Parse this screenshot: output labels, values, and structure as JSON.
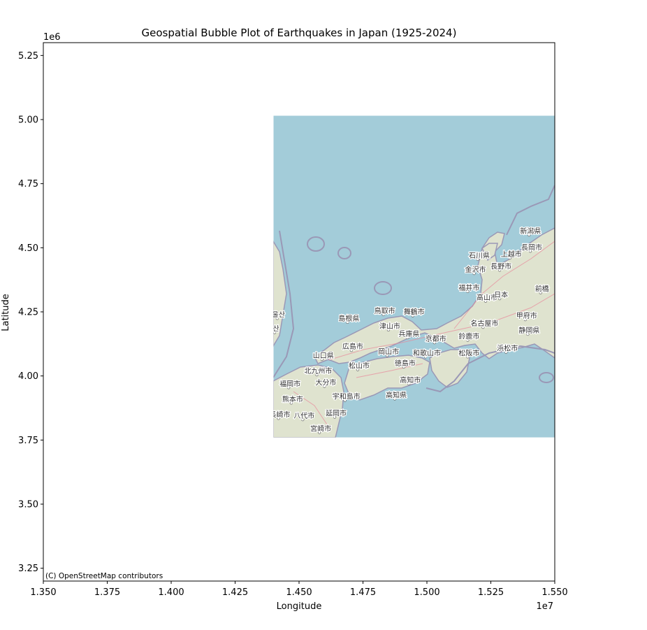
{
  "chart_data": {
    "type": "scatter",
    "title": "Geospatial Bubble Plot of Earthquakes in Japan (1925-2024)",
    "xlabel": "Longitude",
    "ylabel": "Latitude",
    "xlim": [
      13500000,
      15500000
    ],
    "ylim": [
      3200000,
      5300000
    ],
    "x_ticks": [
      13500000,
      13750000,
      14000000,
      14250000,
      14500000,
      14750000,
      15000000,
      15250000,
      15500000
    ],
    "x_tick_labels": [
      "1.350",
      "1.375",
      "1.400",
      "1.425",
      "1.450",
      "1.475",
      "1.500",
      "1.525",
      "1.550"
    ],
    "x_offset_label": "1e7",
    "y_ticks": [
      3250000,
      3500000,
      3750000,
      4000000,
      4250000,
      4500000,
      4750000,
      5000000,
      5250000
    ],
    "y_tick_labels": [
      "3.25",
      "3.50",
      "3.75",
      "4.00",
      "4.25",
      "4.50",
      "4.75",
      "5.00",
      "5.25"
    ],
    "y_offset_label": "1e6",
    "grid": false,
    "series": [],
    "basemap": {
      "provider": "OpenStreetMap",
      "attribution": "(C) OpenStreetMap contributors",
      "extent_x": [
        14400000,
        15500000
      ],
      "extent_y": [
        3760000,
        5015000
      ],
      "colors": {
        "sea": "#a3ccd9",
        "land": "#dfe3cf",
        "border": "#9a98b6",
        "road": "#e8889a"
      },
      "place_labels": [
        {
          "text": "金沢市",
          "x": 15190000,
          "y": 4405000
        },
        {
          "text": "長野市",
          "x": 15290000,
          "y": 4418000
        },
        {
          "text": "新潟県",
          "x": 15405000,
          "y": 4555000
        },
        {
          "text": "長岡市",
          "x": 15410000,
          "y": 4492000
        },
        {
          "text": "石川県",
          "x": 15205000,
          "y": 4460000
        },
        {
          "text": "上越市",
          "x": 15330000,
          "y": 4465000
        },
        {
          "text": "福井市",
          "x": 15165000,
          "y": 4335000
        },
        {
          "text": "前橋",
          "x": 15450000,
          "y": 4330000
        },
        {
          "text": "高山市",
          "x": 15235000,
          "y": 4297000
        },
        {
          "text": "日本",
          "x": 15290000,
          "y": 4307000
        },
        {
          "text": "鳥取市",
          "x": 14835000,
          "y": 4245000
        },
        {
          "text": "舞鶴市",
          "x": 14950000,
          "y": 4240000
        },
        {
          "text": "島根県",
          "x": 14695000,
          "y": 4215000
        },
        {
          "text": "名古屋市",
          "x": 15225000,
          "y": 4195000
        },
        {
          "text": "甲府市",
          "x": 15390000,
          "y": 4225000
        },
        {
          "text": "津山市",
          "x": 14855000,
          "y": 4185000
        },
        {
          "text": "兵庫県",
          "x": 14930000,
          "y": 4155000
        },
        {
          "text": "京都市",
          "x": 15035000,
          "y": 4135000
        },
        {
          "text": "鈴鹿市",
          "x": 15165000,
          "y": 4145000
        },
        {
          "text": "静岡県",
          "x": 15400000,
          "y": 4168000
        },
        {
          "text": "広島市",
          "x": 14710000,
          "y": 4105000
        },
        {
          "text": "岡山市",
          "x": 14850000,
          "y": 4085000
        },
        {
          "text": "浜松市",
          "x": 15315000,
          "y": 4098000
        },
        {
          "text": "松阪市",
          "x": 15165000,
          "y": 4080000
        },
        {
          "text": "和歌山市",
          "x": 15000000,
          "y": 4080000
        },
        {
          "text": "山口県",
          "x": 14595000,
          "y": 4070000
        },
        {
          "text": "松山市",
          "x": 14735000,
          "y": 4030000
        },
        {
          "text": "徳島市",
          "x": 14915000,
          "y": 4040000
        },
        {
          "text": "北九州市",
          "x": 14575000,
          "y": 4010000
        },
        {
          "text": "高知市",
          "x": 14935000,
          "y": 3975000
        },
        {
          "text": "大分市",
          "x": 14605000,
          "y": 3965000
        },
        {
          "text": "福岡市",
          "x": 14465000,
          "y": 3960000
        },
        {
          "text": "宇和島市",
          "x": 14685000,
          "y": 3910000
        },
        {
          "text": "高知県",
          "x": 14880000,
          "y": 3916000
        },
        {
          "text": "熊本市",
          "x": 14475000,
          "y": 3900000
        },
        {
          "text": "長崎市",
          "x": 14425000,
          "y": 3840000
        },
        {
          "text": "八代市",
          "x": 14520000,
          "y": 3835000
        },
        {
          "text": "延岡市",
          "x": 14645000,
          "y": 3845000
        },
        {
          "text": "宮崎市",
          "x": 14585000,
          "y": 3785000
        },
        {
          "text": "울산",
          "x": 14420000,
          "y": 4230000
        },
        {
          "text": "산",
          "x": 14410000,
          "y": 4175000
        }
      ]
    }
  }
}
